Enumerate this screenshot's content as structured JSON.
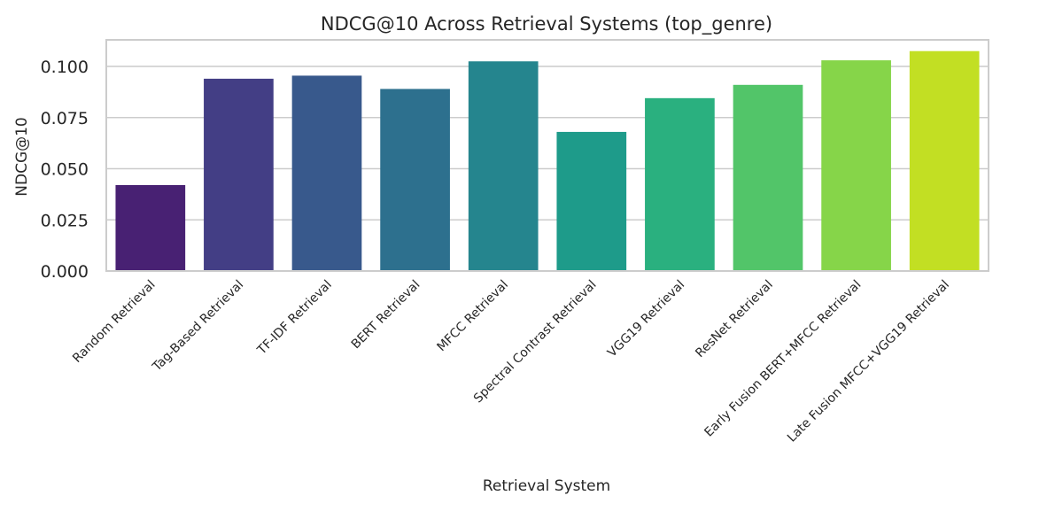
{
  "chart_data": {
    "type": "bar",
    "title": "NDCG@10 Across Retrieval Systems (top_genre)",
    "xlabel": "Retrieval System",
    "ylabel": "NDCG@10",
    "categories": [
      "Random Retrieval",
      "Tag-Based Retrieval",
      "TF-IDF Retrieval",
      "BERT Retrieval",
      "MFCC Retrieval",
      "Spectral Contrast Retrieval",
      "VGG19 Retrieval",
      "ResNet Retrieval",
      "Early Fusion BERT+MFCC Retrieval",
      "Late Fusion MFCC+VGG19 Retrieval"
    ],
    "values": [
      0.042,
      0.094,
      0.0955,
      0.089,
      0.1025,
      0.068,
      0.0845,
      0.091,
      0.103,
      0.1075
    ],
    "colors": [
      "#482173",
      "#433e85",
      "#38598c",
      "#2d708e",
      "#25858e",
      "#1e9b8a",
      "#2ab07f",
      "#52c569",
      "#86d549",
      "#c2df23"
    ],
    "yticks": [
      "0.000",
      "0.025",
      "0.050",
      "0.075",
      "0.100"
    ],
    "ytick_values": [
      0,
      0.025,
      0.05,
      0.075,
      0.1
    ],
    "ylim": [
      0,
      0.113
    ],
    "grid": "horizontal",
    "legend": "none"
  }
}
